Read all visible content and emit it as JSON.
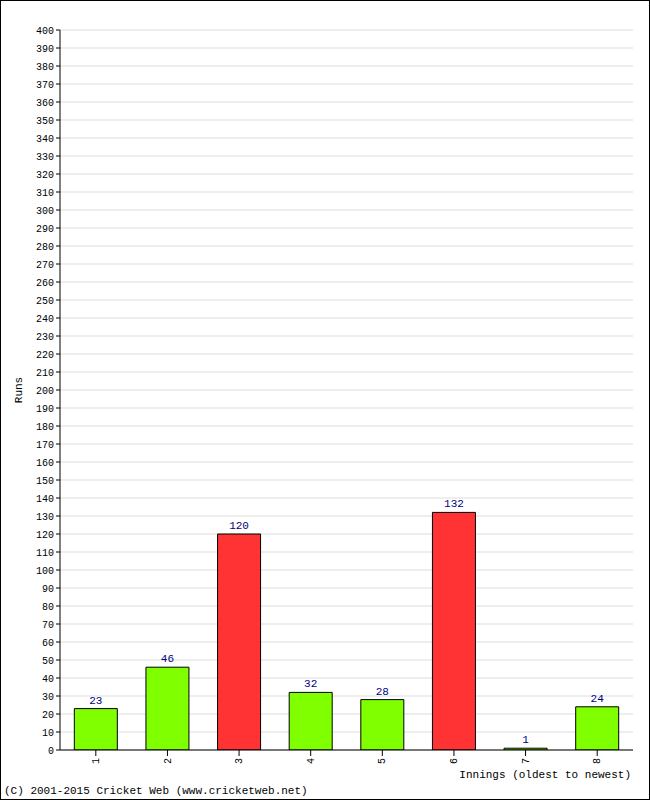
{
  "chart_data": {
    "type": "bar",
    "categories": [
      "1",
      "2",
      "3",
      "4",
      "5",
      "6",
      "7",
      "8"
    ],
    "values": [
      23,
      46,
      120,
      32,
      28,
      132,
      1,
      24
    ],
    "colors": [
      "#80ff00",
      "#80ff00",
      "#ff3333",
      "#80ff00",
      "#80ff00",
      "#ff3333",
      "#80ff00",
      "#80ff00"
    ],
    "x_label": "Innings (oldest to newest)",
    "y_label": "Runs",
    "annotation": "(C) 2001-2015 Cricket Web (www.cricketweb.net)",
    "ylim": [
      0,
      400
    ],
    "yticks": [
      0,
      10,
      20,
      30,
      40,
      50,
      60,
      70,
      80,
      90,
      100,
      110,
      120,
      130,
      140,
      150,
      160,
      170,
      180,
      190,
      200,
      210,
      220,
      230,
      240,
      250,
      260,
      270,
      280,
      290,
      300,
      310,
      320,
      330,
      340,
      350,
      360,
      370,
      380,
      390,
      400
    ],
    "grid": true,
    "data_labels": true
  }
}
